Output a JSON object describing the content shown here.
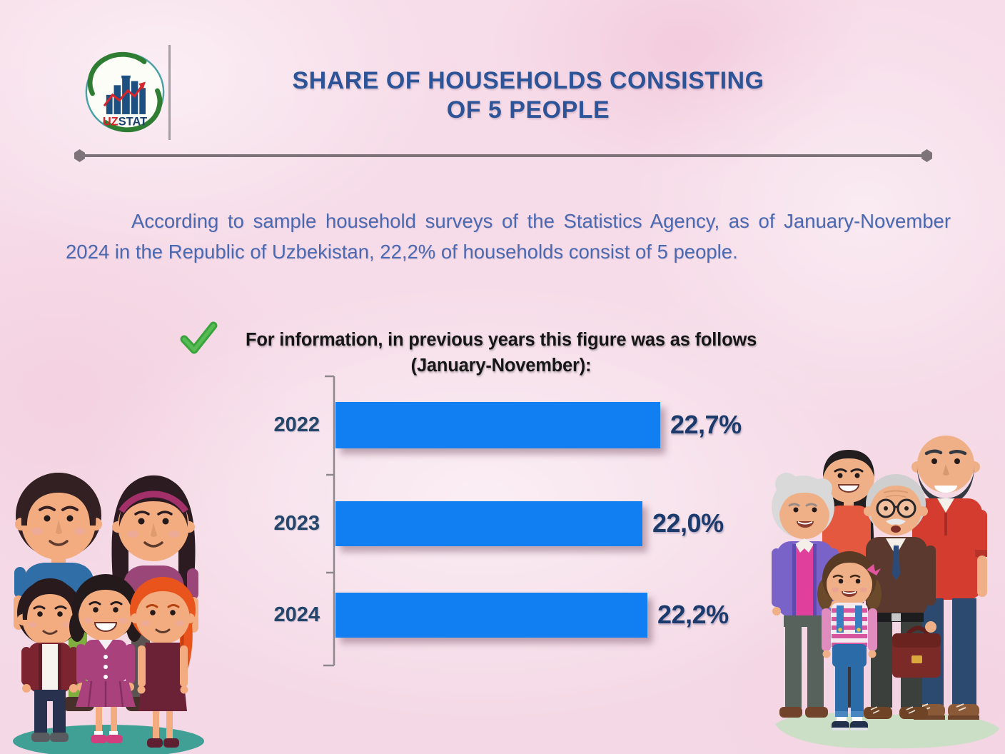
{
  "header": {
    "logo": {
      "icon": "uzstat-logo-icon",
      "text_uz": "UZ",
      "text_stat": "STAT"
    },
    "title_line1": "SHARE OF HOUSEHOLDS CONSISTING",
    "title_line2": "OF 5 PEOPLE"
  },
  "intro": {
    "text": "According to sample household surveys of the Statistics Agency, as of January-November 2024 in the Republic of Uzbekistan, 22,2% of households consist of 5 people."
  },
  "note": {
    "icon": "check-icon",
    "line1": "For information, in previous years this figure was as follows",
    "line2": "(January-November):"
  },
  "chart_data": {
    "type": "bar",
    "orientation": "horizontal",
    "categories": [
      "2022",
      "2023",
      "2024"
    ],
    "values": [
      22.7,
      22.0,
      22.2
    ],
    "value_labels": [
      "22,7%",
      "22,0%",
      "22,2%"
    ],
    "xlim": [
      10,
      23.4
    ],
    "grid": false,
    "legend": false,
    "bar_color": "#117ef2",
    "value_label_color": "#1c3a6b",
    "category_label_color": "#24466b",
    "axis_color": "#8e888c"
  },
  "illustrations": {
    "left_family_icon": "family-parents-and-three-children-icon",
    "right_family_icon": "family-grandparents-parents-and-child-icon"
  },
  "colors": {
    "background": "#f7dde9",
    "title": "#2d5496",
    "paragraph": "#4b69b0",
    "note_text": "#161616",
    "check_green": "#3aa43c",
    "divider": "#7d7378",
    "logo_red": "#d6252b",
    "logo_navy": "#1d3f70"
  }
}
